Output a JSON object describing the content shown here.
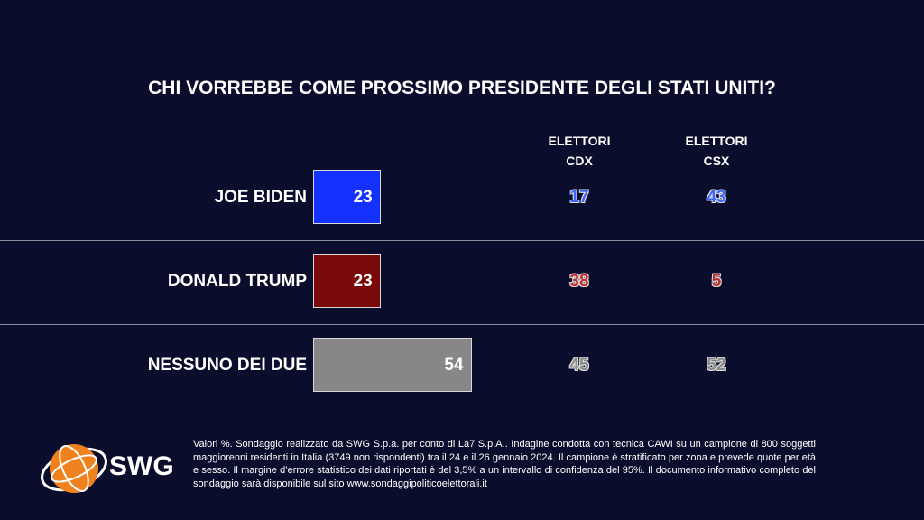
{
  "chart_data": {
    "type": "bar",
    "title": "CHI VORREBBE COME PROSSIMO PRESIDENTE DEGLI STATI UNITI?",
    "categories": [
      "JOE BIDEN",
      "DONALD TRUMP",
      "NESSUNO DEI DUE"
    ],
    "values": [
      23,
      23,
      54
    ],
    "colors": [
      "#1432ff",
      "#7a0a0a",
      "#878787"
    ],
    "text_colors": [
      "#3f64ff",
      "#c03030",
      "#8a8a8a"
    ],
    "columns": [
      {
        "name": "ELETTORI CDX",
        "values": [
          17,
          38,
          45
        ]
      },
      {
        "name": "ELETTORI CSX",
        "values": [
          43,
          5,
          52
        ]
      }
    ]
  },
  "footer": {
    "logo": "SWG",
    "note": "Valori %. Sondaggio realizzato da SWG S.p.a. per conto di La7 S.p.A.. Indagine condotta con tecnica CAWI su un campione di 800 soggetti maggiorenni residenti in Italia (3749 non rispondenti) tra il 24 e il 26 gennaio 2024. Il campione è stratificato per zona e prevede quote per età e sesso. Il margine d’errore statistico dei dati riportati è del 3,5% a un intervallo di confidenza del 95%. Il documento informativo completo del sondaggio sarà disponibile sul sito www.sondaggipoliticoelettorali.it"
  }
}
